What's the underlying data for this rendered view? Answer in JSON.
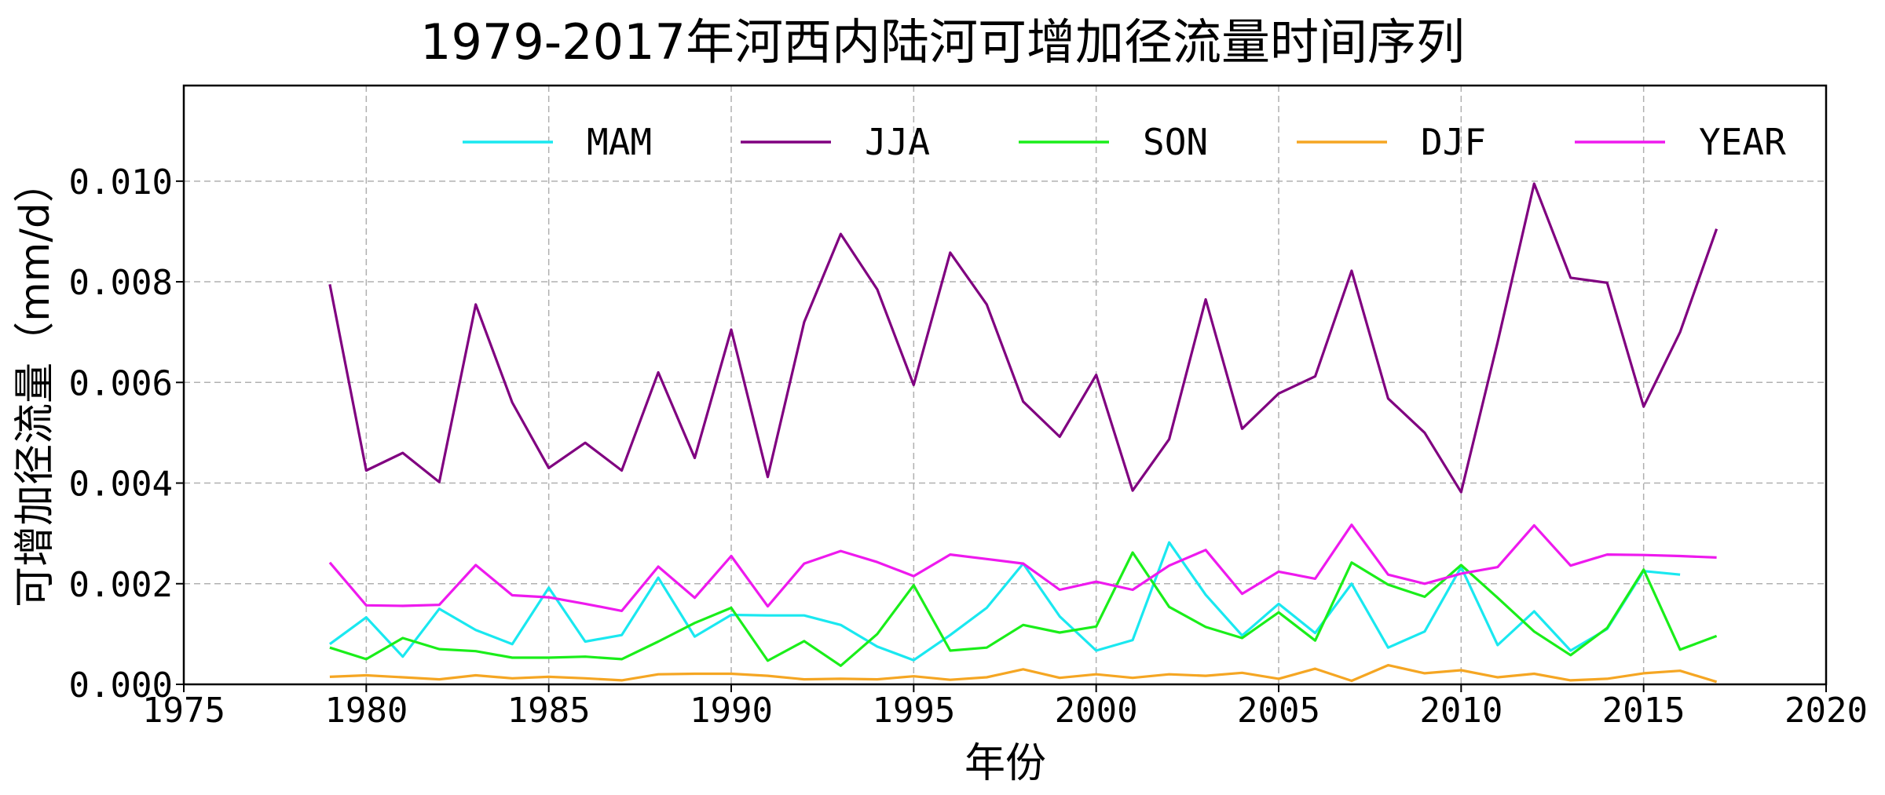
{
  "chart_data": {
    "type": "line",
    "title": "1979-2017年河西内陆河可增加径流量时间序列",
    "xlabel": "年份",
    "ylabel": "可增加径流量（mm/d）",
    "xlim": [
      1975,
      2020
    ],
    "ylim": [
      0,
      0.0119
    ],
    "xticks": [
      "1975",
      "1980",
      "1985",
      "1990",
      "1995",
      "2000",
      "2005",
      "2010",
      "2015",
      "2020"
    ],
    "yticks": [
      "0.000",
      "0.002",
      "0.004",
      "0.006",
      "0.008",
      "0.010"
    ],
    "grid": true,
    "legend_position": "top",
    "x": [
      1979,
      1980,
      1981,
      1982,
      1983,
      1984,
      1985,
      1986,
      1987,
      1988,
      1989,
      1990,
      1991,
      1992,
      1993,
      1994,
      1995,
      1996,
      1997,
      1998,
      1999,
      2000,
      2001,
      2002,
      2003,
      2004,
      2005,
      2006,
      2007,
      2008,
      2009,
      2010,
      2011,
      2012,
      2013,
      2014,
      2015,
      2016,
      2017
    ],
    "series": [
      {
        "name": "MAM",
        "color": "#1ae8f0",
        "values": [
          0.0008,
          0.00133,
          0.00055,
          0.0015,
          0.00108,
          0.0008,
          0.00192,
          0.00085,
          0.00098,
          0.00212,
          0.00095,
          0.00138,
          0.00137,
          0.00137,
          0.00118,
          0.00075,
          0.00048,
          0.00098,
          0.00152,
          0.0024,
          0.00135,
          0.00067,
          0.00088,
          0.00282,
          0.00178,
          0.00097,
          0.0016,
          0.00102,
          0.002,
          0.00073,
          0.00105,
          0.00233,
          0.00078,
          0.00145,
          0.00067,
          0.0011,
          0.00225,
          0.00218,
          null
        ]
      },
      {
        "name": "JJA",
        "color": "#800080",
        "values": [
          0.00795,
          0.00425,
          0.0046,
          0.00402,
          0.00755,
          0.0056,
          0.0043,
          0.0048,
          0.00425,
          0.0062,
          0.0045,
          0.00705,
          0.00412,
          0.0072,
          0.00895,
          0.00785,
          0.00595,
          0.00858,
          0.00755,
          0.00562,
          0.00492,
          0.00615,
          0.00385,
          0.00487,
          0.00765,
          0.00508,
          0.00578,
          0.00612,
          0.00822,
          0.00568,
          0.005,
          0.00382,
          0.0068,
          0.00995,
          0.00808,
          0.00798,
          0.00552,
          0.007,
          0.00905
        ]
      },
      {
        "name": "SON",
        "color": "#1aee1a",
        "values": [
          0.00073,
          0.0005,
          0.00092,
          0.0007,
          0.00066,
          0.00053,
          0.00053,
          0.00055,
          0.0005,
          0.00085,
          0.00122,
          0.00152,
          0.00047,
          0.00086,
          0.00037,
          0.001,
          0.00197,
          0.00067,
          0.00073,
          0.00118,
          0.00103,
          0.00115,
          0.00262,
          0.00154,
          0.00114,
          0.00092,
          0.00143,
          0.00087,
          0.00242,
          0.00198,
          0.00174,
          0.00237,
          0.00172,
          0.00105,
          0.00058,
          0.00112,
          0.00228,
          0.00069,
          0.00096
        ]
      },
      {
        "name": "DJF",
        "color": "#f5a623",
        "values": [
          0.00015,
          0.00018,
          0.00014,
          0.0001,
          0.00018,
          0.00012,
          0.00015,
          0.00012,
          8e-05,
          0.0002,
          0.00021,
          0.00021,
          0.00017,
          0.0001,
          0.00011,
          0.0001,
          0.00016,
          9e-05,
          0.00014,
          0.0003,
          0.00013,
          0.0002,
          0.00013,
          0.0002,
          0.00017,
          0.00023,
          0.00011,
          0.00031,
          7e-05,
          0.00038,
          0.00022,
          0.00028,
          0.00014,
          0.00021,
          8e-05,
          0.00011,
          0.00022,
          0.00027,
          5e-05
        ]
      },
      {
        "name": "YEAR",
        "color": "#ee1aee",
        "values": [
          0.00242,
          0.00157,
          0.00156,
          0.00158,
          0.00237,
          0.00177,
          0.00173,
          0.0016,
          0.00146,
          0.00234,
          0.00172,
          0.00255,
          0.00155,
          0.0024,
          0.00265,
          0.00243,
          0.00215,
          0.00258,
          0.00249,
          0.0024,
          0.00188,
          0.00204,
          0.00188,
          0.00236,
          0.00267,
          0.0018,
          0.00224,
          0.0021,
          0.00317,
          0.00218,
          0.002,
          0.0022,
          0.00233,
          0.00316,
          0.00236,
          0.00258,
          0.00257,
          0.00255,
          0.00252
        ]
      }
    ]
  }
}
